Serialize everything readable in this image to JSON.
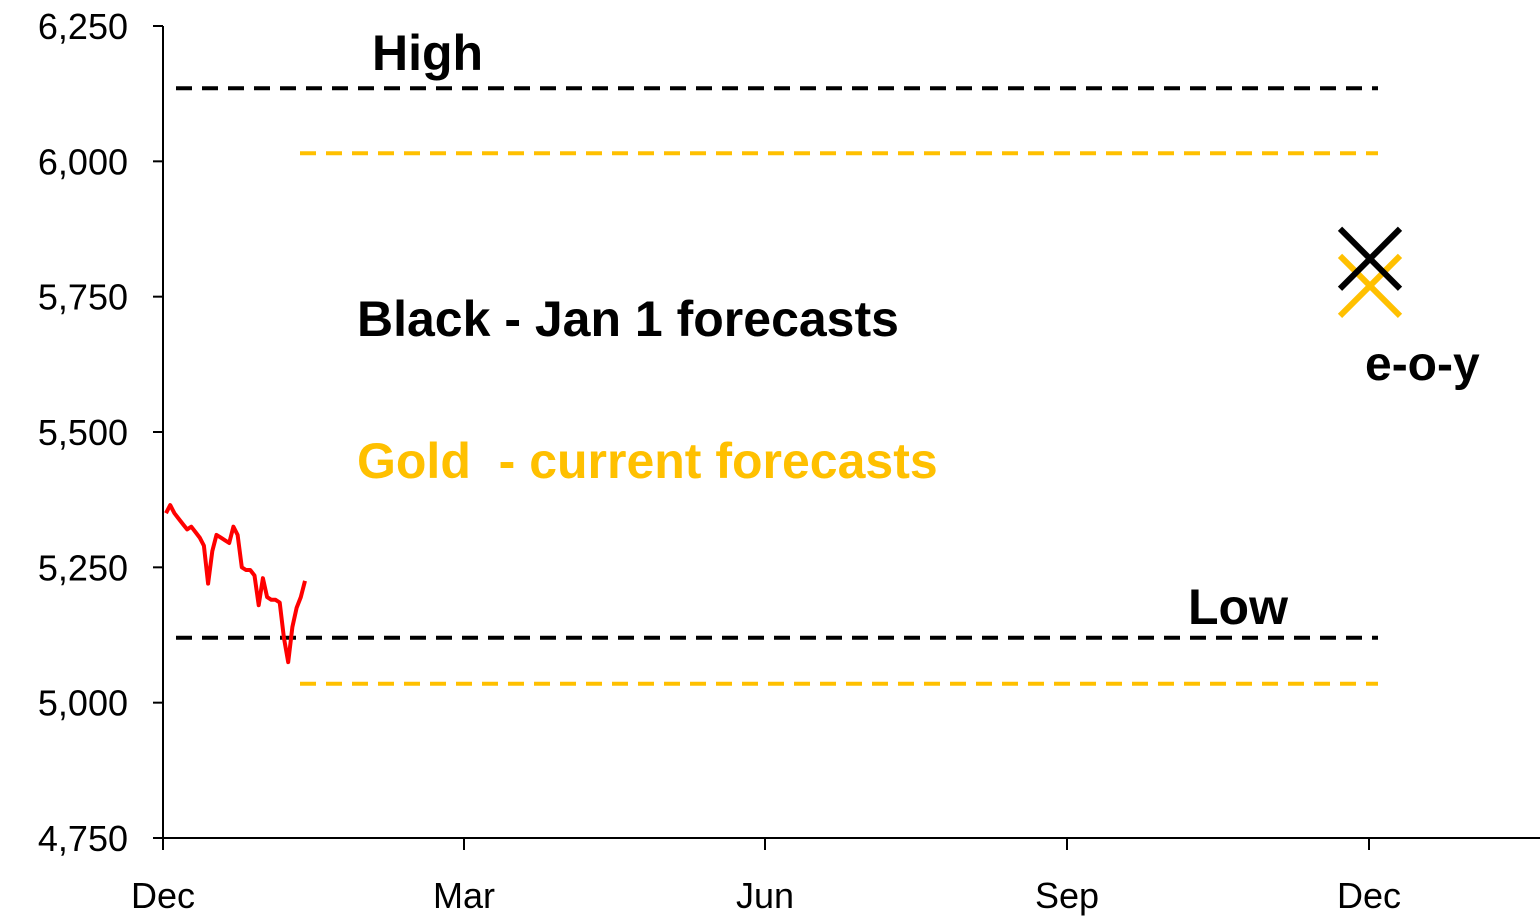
{
  "chart_data": {
    "type": "line",
    "title": "",
    "xlabel": "",
    "ylabel": "",
    "ylim": [
      4750,
      6250
    ],
    "y_ticks": [
      "4,750",
      "5,000",
      "5,250",
      "5,500",
      "5,750",
      "6,000",
      "6,250"
    ],
    "y_tick_values": [
      4750,
      5000,
      5250,
      5500,
      5750,
      6000,
      6250
    ],
    "x_ticks": [
      "Dec",
      "Mar",
      "Jun",
      "Sep",
      "Dec"
    ],
    "grid": false,
    "colors": {
      "price": "#ff0000",
      "jan1": "#000000",
      "current": "#ffc000"
    },
    "price_series": {
      "values": [
        5350,
        5365,
        5350,
        5340,
        5330,
        5320,
        5325,
        5315,
        5305,
        5290,
        5220,
        5280,
        5310,
        5305,
        5300,
        5295,
        5325,
        5310,
        5250,
        5245,
        5245,
        5235,
        5180,
        5230,
        5195,
        5190,
        5190,
        5185,
        5120,
        5075,
        5140,
        5175,
        5195,
        5225
      ]
    },
    "forecast_lines": [
      {
        "group": "jan1",
        "kind": "high",
        "value": 6135
      },
      {
        "group": "jan1",
        "kind": "low",
        "value": 5120
      },
      {
        "group": "current",
        "kind": "high",
        "value": 6015
      },
      {
        "group": "current",
        "kind": "low",
        "value": 5035
      }
    ],
    "eoy_markers": [
      {
        "group": "jan1",
        "value": 5820
      },
      {
        "group": "current",
        "value": 5770
      }
    ],
    "annotations": {
      "high": "High",
      "low": "Low",
      "black_legend": "Black - Jan 1 forecasts",
      "gold_legend": "Gold  - current forecasts",
      "eoy": "e-o-y"
    }
  }
}
